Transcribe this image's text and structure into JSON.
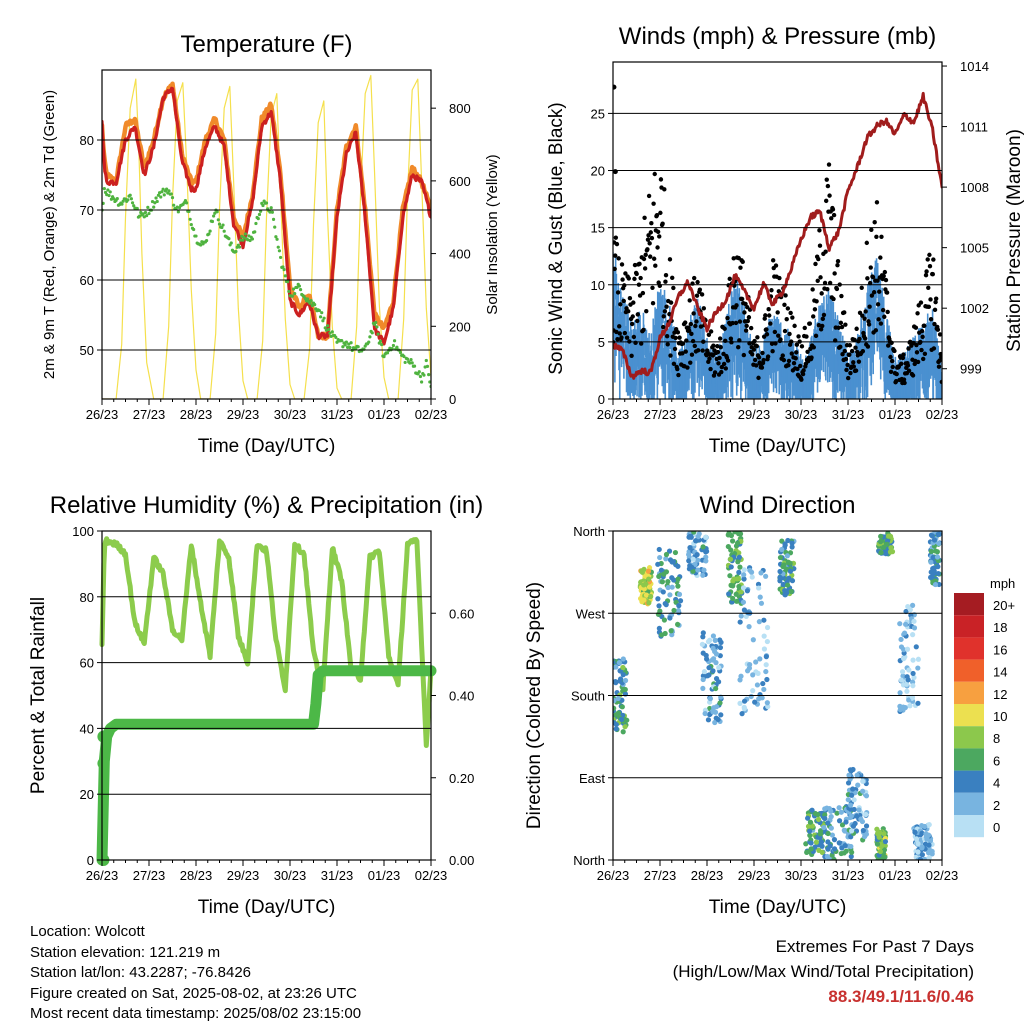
{
  "info": {
    "location": "Location: Wolcott",
    "elevation": "Station elevation: 121.219 m",
    "latlon": "Station lat/lon: 43.2287; -76.8426",
    "created": "Figure created on Sat, 2025-08-02, at 23:26 UTC",
    "recent": "Most recent data timestamp: 2025/08/02 23:15:00"
  },
  "extremes": {
    "title": "Extremes For Past 7 Days",
    "subtitle": "(High/Low/Max Wind/Total Precipitation)",
    "values": "88.3/49.1/11.6/0.46",
    "color": "#c8312f"
  },
  "chart_data": [
    {
      "id": "temperature",
      "type": "line",
      "title": "Temperature (F)",
      "xlabel": "Time (Day/UTC)",
      "ylabel": "2m & 9m T (Red, Orange) & 2m Td (Green)",
      "y2label": "Solar Insolation (Yellow)",
      "x_ticks": [
        "26/23",
        "27/23",
        "28/23",
        "29/23",
        "30/23",
        "31/23",
        "01/23",
        "02/23"
      ],
      "xlim": [
        0,
        7
      ],
      "ylim": [
        43,
        90
      ],
      "y_ticks": [
        50,
        60,
        70,
        80
      ],
      "y2lim": [
        0,
        905
      ],
      "y2_ticks": [
        0,
        200,
        400,
        600,
        800
      ],
      "grid": true,
      "series": [
        {
          "color": "#f5e04d",
          "axis": "y2",
          "x": [
            0,
            0.3,
            0.42,
            0.5,
            0.6,
            0.72,
            0.78,
            0.85,
            0.95,
            1.1,
            1.3,
            1.42,
            1.5,
            1.6,
            1.72,
            1.8,
            1.9,
            2.0,
            2.1,
            2.3,
            2.42,
            2.5,
            2.6,
            2.72,
            2.8,
            2.9,
            3.0,
            3.1,
            3.3,
            3.42,
            3.5,
            3.6,
            3.72,
            3.8,
            3.9,
            4.0,
            4.1,
            4.3,
            4.42,
            4.5,
            4.6,
            4.72,
            4.8,
            4.9,
            5.0,
            5.1,
            5.3,
            5.42,
            5.5,
            5.6,
            5.72,
            5.8,
            5.9,
            6.0,
            6.1,
            6.3,
            6.42,
            6.5,
            6.6,
            6.72,
            6.8,
            6.9,
            7.0
          ],
          "values": [
            0,
            0,
            150,
            500,
            800,
            880,
            700,
            400,
            100,
            0,
            0,
            200,
            550,
            820,
            870,
            650,
            300,
            80,
            0,
            0,
            180,
            520,
            800,
            860,
            600,
            250,
            50,
            0,
            0,
            160,
            500,
            780,
            840,
            560,
            220,
            40,
            0,
            0,
            140,
            480,
            760,
            820,
            500,
            200,
            30,
            0,
            0,
            200,
            560,
            840,
            890,
            620,
            260,
            60,
            0,
            0,
            220,
            560,
            850,
            880,
            600,
            250,
            60
          ]
        },
        {
          "color": "#f08a2a",
          "x": [
            0,
            0.05,
            0.1,
            0.3,
            0.5,
            0.7,
            0.9,
            1.1,
            1.3,
            1.5,
            1.7,
            1.9,
            2.0,
            2.2,
            2.4,
            2.6,
            2.8,
            3.0,
            3.2,
            3.4,
            3.6,
            3.8,
            4.0,
            4.2,
            4.4,
            4.6,
            4.8,
            5.0,
            5.2,
            5.4,
            5.6,
            5.8,
            6.0,
            6.2,
            6.4,
            6.6,
            6.8,
            7.0
          ],
          "values": [
            82,
            77,
            75,
            74,
            82,
            83,
            76,
            80,
            86,
            88,
            78,
            74,
            74,
            80,
            83,
            80,
            69,
            66,
            72,
            83,
            85,
            75,
            59,
            56,
            58,
            52,
            52,
            70,
            79,
            82,
            70,
            55,
            53,
            57,
            70,
            76,
            74,
            70
          ]
        },
        {
          "color": "#cc2020",
          "x": [
            0,
            0.05,
            0.1,
            0.3,
            0.5,
            0.7,
            0.9,
            1.1,
            1.3,
            1.5,
            1.7,
            1.9,
            2.0,
            2.2,
            2.4,
            2.6,
            2.8,
            3.0,
            3.2,
            3.4,
            3.6,
            3.8,
            4.0,
            4.2,
            4.4,
            4.6,
            4.8,
            5.0,
            5.2,
            5.4,
            5.6,
            5.8,
            6.0,
            6.2,
            6.4,
            6.6,
            6.8,
            7.0
          ],
          "values": [
            83,
            76,
            74,
            74,
            80,
            82,
            75,
            79,
            86,
            87.5,
            77,
            73,
            73,
            79,
            82,
            79,
            68,
            65,
            71,
            82,
            84,
            74,
            57,
            55,
            57,
            52,
            52,
            69,
            78,
            81,
            69,
            53,
            51,
            56,
            69,
            75,
            74,
            69
          ]
        },
        {
          "color": "#4fb33f",
          "x": [
            0,
            0.05,
            0.2,
            0.4,
            0.6,
            0.8,
            1.0,
            1.2,
            1.4,
            1.6,
            1.8,
            2.0,
            2.2,
            2.4,
            2.6,
            2.8,
            3.0,
            3.2,
            3.4,
            3.6,
            3.8,
            4.0,
            4.2,
            4.4,
            4.6,
            4.8,
            5.0,
            5.2,
            5.4,
            5.6,
            5.8,
            6.0,
            6.2,
            6.4,
            6.6,
            6.8,
            6.9,
            7.0
          ],
          "values": [
            70,
            73,
            72,
            71,
            72,
            69,
            70,
            72,
            73,
            70,
            71,
            66,
            65,
            70,
            67,
            64,
            66,
            66,
            71,
            70,
            63,
            58,
            59,
            57,
            56,
            53,
            51,
            51,
            50,
            50,
            54,
            49,
            51,
            49,
            48,
            46,
            48,
            45
          ]
        }
      ]
    },
    {
      "id": "winds",
      "type": "scatter",
      "title": "Winds (mph) & Pressure (mb)",
      "xlabel": "Time (Day/UTC)",
      "ylabel": "Sonic Wind & Gust (Blue, Black)",
      "y2label": "Station Pressure (Maroon)",
      "x_ticks": [
        "26/23",
        "27/23",
        "28/23",
        "29/23",
        "30/23",
        "31/23",
        "01/23",
        "02/23"
      ],
      "xlim": [
        0,
        7
      ],
      "ylim": [
        0,
        29.5
      ],
      "y_ticks": [
        0,
        5,
        10,
        15,
        20,
        25
      ],
      "y2lim": [
        997.5,
        1014.2
      ],
      "y2_ticks": [
        999,
        1002,
        1005,
        1008,
        1011,
        1014
      ],
      "grid": true,
      "sustained_profile": {
        "color": "#4a90d0",
        "x": [
          0,
          0.2,
          0.4,
          0.6,
          0.8,
          1.0,
          1.2,
          1.4,
          1.6,
          1.8,
          2.0,
          2.2,
          2.4,
          2.6,
          2.8,
          3.0,
          3.2,
          3.4,
          3.6,
          3.8,
          4.0,
          4.2,
          4.4,
          4.6,
          4.8,
          5.0,
          5.2,
          5.4,
          5.6,
          5.8,
          6.0,
          6.2,
          6.4,
          6.6,
          6.8,
          7.0
        ],
        "values": [
          10,
          7,
          5,
          6,
          4,
          8,
          6,
          3,
          5,
          7,
          4,
          3,
          5,
          8,
          6,
          3,
          4,
          6,
          5,
          4,
          3,
          4,
          6,
          7,
          5,
          3,
          4,
          7,
          9,
          6,
          3,
          3,
          4,
          5,
          6,
          2
        ]
      },
      "gust_profile": {
        "color": "#000000",
        "x": [
          0,
          0.2,
          0.4,
          0.6,
          0.8,
          1.0,
          1.2,
          1.4,
          1.6,
          1.8,
          2.0,
          2.2,
          2.4,
          2.6,
          2.8,
          3.0,
          3.2,
          3.4,
          3.6,
          3.8,
          4.0,
          4.2,
          4.4,
          4.6,
          4.8,
          5.0,
          5.2,
          5.4,
          5.6,
          5.8,
          6.0,
          6.2,
          6.4,
          6.6,
          6.8,
          7.0
        ],
        "values": [
          12,
          9,
          8,
          11,
          15,
          18,
          10,
          5,
          7,
          9,
          5,
          4,
          6,
          12,
          9,
          4,
          5,
          10,
          8,
          6,
          4,
          6,
          12,
          17,
          9,
          4,
          5,
          11,
          14,
          9,
          3,
          3,
          5,
          8,
          11,
          3
        ]
      },
      "gust_max": 27.3,
      "series": [
        {
          "name": "pressure",
          "color": "#a01c1c",
          "axis": "y2",
          "x": [
            0,
            0.2,
            0.4,
            0.6,
            0.8,
            1.0,
            1.2,
            1.4,
            1.6,
            1.8,
            2.0,
            2.2,
            2.4,
            2.6,
            2.8,
            3.0,
            3.2,
            3.4,
            3.6,
            3.8,
            4.0,
            4.2,
            4.4,
            4.6,
            4.8,
            5.0,
            5.2,
            5.4,
            5.6,
            5.8,
            6.0,
            6.2,
            6.4,
            6.6,
            6.8,
            7.0
          ],
          "values": [
            1000.2,
            999.9,
            998.6,
            998.9,
            998.8,
            1000.5,
            1001.3,
            1002.6,
            1003.3,
            1002.0,
            1001.0,
            1001.8,
            1002.4,
            1003.6,
            1002.8,
            1002.0,
            1003.2,
            1002.2,
            1002.8,
            1004.0,
            1005.4,
            1006.5,
            1006.8,
            1005.0,
            1005.8,
            1007.8,
            1009.0,
            1010.4,
            1011.0,
            1011.3,
            1010.6,
            1011.6,
            1011.2,
            1012.5,
            1010.8,
            1008.0
          ]
        }
      ]
    },
    {
      "id": "humidity",
      "type": "line",
      "title": "Relative Humidity (%) & Precipitation (in)",
      "xlabel": "Time (Day/UTC)",
      "ylabel": "Percent & Total Rainfall",
      "x_ticks": [
        "26/23",
        "27/23",
        "28/23",
        "29/23",
        "30/23",
        "31/23",
        "01/23",
        "02/23"
      ],
      "xlim": [
        0,
        7
      ],
      "ylim": [
        0,
        100
      ],
      "y_ticks": [
        0,
        20,
        40,
        60,
        80,
        100
      ],
      "y2lim": [
        0,
        0.8
      ],
      "y2_ticks": [
        "0.00",
        "0.20",
        "0.40",
        "0.60"
      ],
      "grid": true,
      "series": [
        {
          "name": "rh",
          "color": "#8ccc4c",
          "x": [
            0,
            0.05,
            0.1,
            0.3,
            0.5,
            0.7,
            0.9,
            1.1,
            1.3,
            1.5,
            1.7,
            1.9,
            2.1,
            2.3,
            2.5,
            2.7,
            2.9,
            3.1,
            3.3,
            3.5,
            3.7,
            3.9,
            4.1,
            4.3,
            4.5,
            4.7,
            4.9,
            5.1,
            5.3,
            5.5,
            5.7,
            5.9,
            6.1,
            6.3,
            6.5,
            6.7,
            6.8,
            6.9,
            7.0
          ],
          "values": [
            65,
            96,
            97,
            96,
            93,
            72,
            66,
            92,
            87,
            70,
            67,
            96,
            78,
            62,
            97,
            92,
            68,
            60,
            96,
            94,
            67,
            52,
            96,
            93,
            63,
            52,
            95,
            85,
            58,
            55,
            92,
            94,
            62,
            53,
            96,
            97,
            66,
            35,
            58
          ]
        },
        {
          "name": "precip",
          "color": "#4cb847",
          "axis": "y2",
          "x": [
            0,
            0.05,
            0.1,
            0.18,
            0.3,
            0.6,
            1.0,
            2.0,
            3.0,
            4.0,
            4.5,
            4.55,
            4.6,
            4.7,
            5.0,
            6.0,
            7.0
          ],
          "values": [
            0.0,
            0.24,
            0.3,
            0.32,
            0.33,
            0.33,
            0.33,
            0.33,
            0.33,
            0.33,
            0.33,
            0.38,
            0.45,
            0.46,
            0.46,
            0.46,
            0.46
          ]
        }
      ]
    },
    {
      "id": "direction",
      "type": "scatter",
      "title": "Wind Direction",
      "xlabel": "Time (Day/UTC)",
      "ylabel": "Direction (Colored By Speed)",
      "x_ticks": [
        "26/23",
        "27/23",
        "28/23",
        "29/23",
        "30/23",
        "31/23",
        "01/23",
        "02/23"
      ],
      "xlim": [
        0,
        7
      ],
      "ylim": [
        0,
        360
      ],
      "y_ticks": [
        "North",
        "East",
        "South",
        "West",
        "North"
      ],
      "grid": true,
      "legend": {
        "title": "mph",
        "labels": [
          "20+",
          "18",
          "16",
          "14",
          "12",
          "10",
          "8",
          "6",
          "4",
          "2",
          "0"
        ],
        "colors": [
          "#a51c22",
          "#c92226",
          "#e0322c",
          "#f0602a",
          "#f7a040",
          "#ece050",
          "#8cc84c",
          "#4ca860",
          "#3a80c0",
          "#78b4e0",
          "#b8e0f4"
        ]
      },
      "clusters": [
        {
          "x": 0.15,
          "dir": 180,
          "spread": [
            0.15,
            40
          ],
          "speed": 5
        },
        {
          "x": 0.7,
          "dir": 300,
          "spread": [
            0.12,
            20
          ],
          "speed": 9
        },
        {
          "x": 1.2,
          "dir": 290,
          "spread": [
            0.25,
            50
          ],
          "speed": 4
        },
        {
          "x": 1.8,
          "dir": 340,
          "spread": [
            0.2,
            30
          ],
          "speed": 3
        },
        {
          "x": 2.1,
          "dir": 200,
          "spread": [
            0.2,
            50
          ],
          "speed": 3
        },
        {
          "x": 2.6,
          "dir": 320,
          "spread": [
            0.15,
            40
          ],
          "speed": 6
        },
        {
          "x": 3.0,
          "dir": 240,
          "spread": [
            0.3,
            80
          ],
          "speed": 2
        },
        {
          "x": 3.7,
          "dir": 320,
          "spread": [
            0.15,
            30
          ],
          "speed": 5
        },
        {
          "x": 4.3,
          "dir": 30,
          "spread": [
            0.2,
            25
          ],
          "speed": 5
        },
        {
          "x": 4.8,
          "dir": 30,
          "spread": [
            0.3,
            30
          ],
          "speed": 4
        },
        {
          "x": 5.2,
          "dir": 60,
          "spread": [
            0.2,
            40
          ],
          "speed": 3
        },
        {
          "x": 5.7,
          "dir": 15,
          "spread": [
            0.1,
            20
          ],
          "speed": 7
        },
        {
          "x": 5.8,
          "dir": 350,
          "spread": [
            0.15,
            15
          ],
          "speed": 6
        },
        {
          "x": 6.3,
          "dir": 220,
          "spread": [
            0.2,
            60
          ],
          "speed": 2
        },
        {
          "x": 6.85,
          "dir": 330,
          "spread": [
            0.1,
            30
          ],
          "speed": 4
        },
        {
          "x": 6.6,
          "dir": 20,
          "spread": [
            0.2,
            20
          ],
          "speed": 2
        }
      ]
    }
  ]
}
